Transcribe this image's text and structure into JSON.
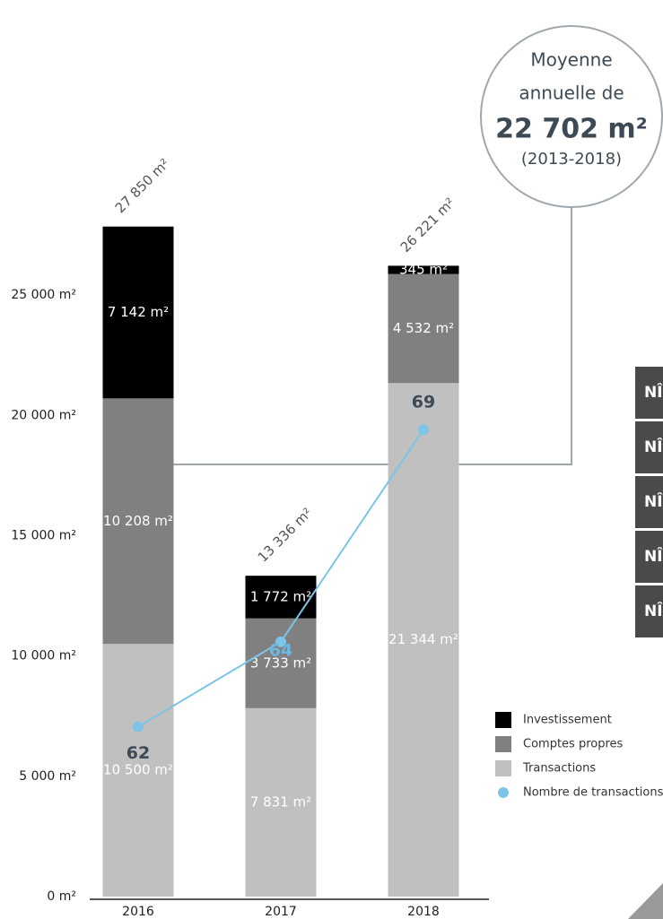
{
  "chart_data": {
    "type": "stacked-bar-line",
    "categories": [
      "2016",
      "2017",
      "2018"
    ],
    "ylim": [
      0,
      30000
    ],
    "yticks": [
      {
        "value": 0,
        "label": "0 m²"
      },
      {
        "value": 5000,
        "label": "5 000 m²"
      },
      {
        "value": 10000,
        "label": "10 000 m²"
      },
      {
        "value": 15000,
        "label": "15 000 m²"
      },
      {
        "value": 20000,
        "label": "20 000 m²"
      },
      {
        "value": 25000,
        "label": "25 000 m²"
      }
    ],
    "y2lim": [
      58,
      75
    ],
    "series": [
      {
        "name": "Transactions",
        "color": "#c0c0c0",
        "values": [
          10500,
          7831,
          21344
        ],
        "value_labels": [
          "10 500 m²",
          "7 831 m²",
          "21 344 m²"
        ]
      },
      {
        "name": "Comptes propres",
        "color": "#808080",
        "values": [
          10208,
          3733,
          4532
        ],
        "value_labels": [
          "10 208 m²",
          "3 733 m²",
          "4 532 m²"
        ]
      },
      {
        "name": "Investissement",
        "color": "#000000",
        "values": [
          7142,
          1772,
          345
        ],
        "value_labels": [
          "7 142 m²",
          "1 772 m²",
          "345 m²"
        ]
      },
      {
        "name": "Nombre de transactions",
        "color": "#7ec4e6",
        "axis": "y2",
        "type": "line",
        "values": [
          62,
          64,
          69
        ],
        "label_colors": [
          "#3d4a55",
          "#6cb8e0",
          "#3d4a55"
        ]
      }
    ],
    "totals": {
      "values": [
        27850,
        13336,
        26221
      ],
      "value_labels": [
        "27 850 m²",
        "13 336 m²",
        "26 221 m²"
      ]
    },
    "average_box": {
      "line1": "Moyenne",
      "line2": "annuelle de",
      "value": "22 702 m²",
      "period": "(2013-2018)"
    },
    "clipped_labels": [
      "NÎ",
      "NÎ",
      "NÎ",
      "NÎ",
      "NÎ"
    ]
  }
}
